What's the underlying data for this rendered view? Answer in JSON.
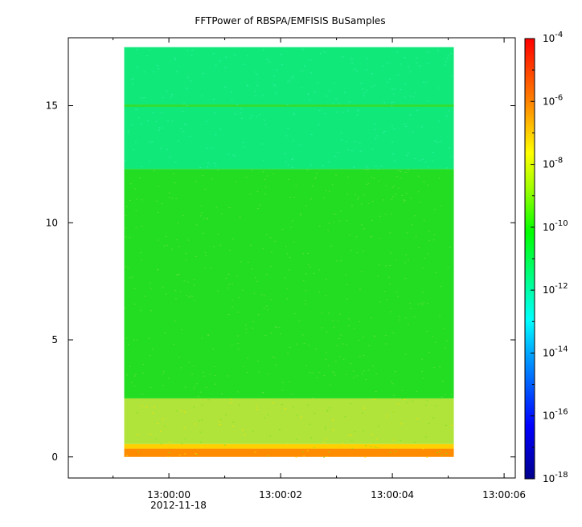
{
  "chart_data": {
    "type": "heatmap",
    "title": "FFTPower of RBSPA/EMFISIS  BuSamples",
    "xlabel": "",
    "ylabel": "",
    "x_ticks": [
      "13:00:00",
      "13:00:02",
      "13:00:04",
      "13:00:06"
    ],
    "x_date_label": "2012-11-18",
    "x_start_seconds": -1.8,
    "x_end_seconds": 6.2,
    "data_x_start_seconds": -0.8,
    "data_x_end_seconds": 5.1,
    "y_ticks": [
      0,
      5,
      10,
      15
    ],
    "ylim": [
      -0.9,
      17.9
    ],
    "data_y_range": [
      0,
      17.5
    ],
    "colorbar": {
      "scale": "log",
      "range": [
        1e-18,
        0.0001
      ],
      "tick_bases": [
        "10",
        "10",
        "10",
        "10",
        "10",
        "10",
        "10",
        "10"
      ],
      "tick_exponents": [
        "-18",
        "-16",
        "-14",
        "-12",
        "-10",
        "-8",
        "-6",
        "-4"
      ]
    },
    "spectrogram_bands": [
      {
        "y_from": 0.0,
        "y_to": 0.35,
        "level": "1e-7",
        "color": "#ff8c00"
      },
      {
        "y_from": 0.35,
        "y_to": 0.55,
        "level": "1e-8",
        "color": "#ffd000"
      },
      {
        "y_from": 0.55,
        "y_to": 2.5,
        "level": "1e-9",
        "color": "#b0e43a"
      },
      {
        "y_from": 2.5,
        "y_to": 12.3,
        "level": "1e-10",
        "color": "#22dd22"
      },
      {
        "y_from": 12.3,
        "y_to": 17.5,
        "level": "1e-12",
        "color": "#11e87a"
      },
      {
        "y_from": 14.95,
        "y_to": 15.05,
        "level": "1e-10",
        "color": "#33dd33"
      }
    ]
  }
}
